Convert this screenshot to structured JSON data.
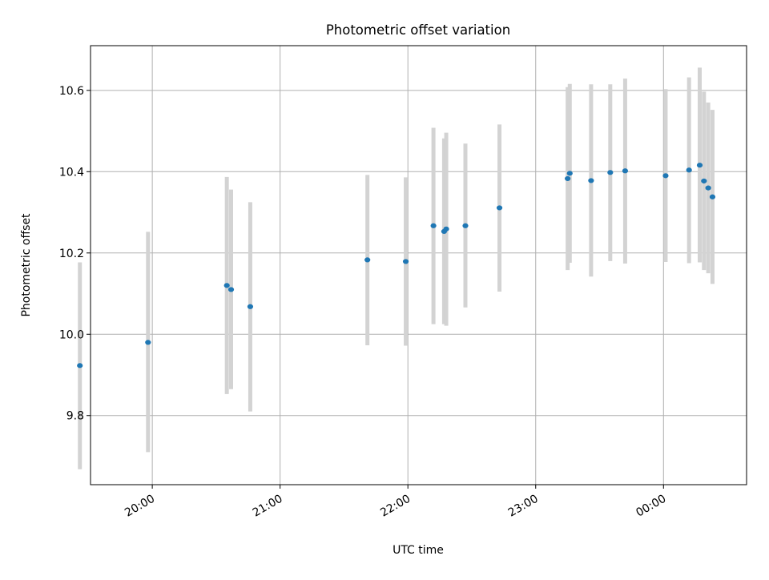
{
  "chart_data": {
    "type": "scatter",
    "title": "Photometric offset variation",
    "xlabel": "UTC time",
    "ylabel": "Photometric offset",
    "x_ticks": [
      "20:00",
      "21:00",
      "22:00",
      "23:00",
      "00:00"
    ],
    "y_ticks": [
      "9.8",
      "10.0",
      "10.2",
      "10.4",
      "10.6"
    ],
    "xlim": [
      "19:31",
      "00:39"
    ],
    "ylim": [
      9.63,
      10.71
    ],
    "grid": true,
    "colors": {
      "point": "#1f77b4",
      "error_bar": "#d3d3d3",
      "grid": "#b0b0b0"
    },
    "series": [
      {
        "points": [
          {
            "x": "19:26",
            "y": 9.923,
            "y_low": 9.668,
            "y_high": 10.177
          },
          {
            "x": "19:58",
            "y": 9.98,
            "y_low": 9.71,
            "y_high": 10.252
          },
          {
            "x": "20:35",
            "y": 10.12,
            "y_low": 9.853,
            "y_high": 10.387
          },
          {
            "x": "20:37",
            "y": 10.11,
            "y_low": 9.865,
            "y_high": 10.356
          },
          {
            "x": "20:46",
            "y": 10.068,
            "y_low": 9.81,
            "y_high": 10.325
          },
          {
            "x": "21:41",
            "y": 10.183,
            "y_low": 9.973,
            "y_high": 10.392
          },
          {
            "x": "21:59",
            "y": 10.179,
            "y_low": 9.972,
            "y_high": 10.386
          },
          {
            "x": "22:12",
            "y": 10.267,
            "y_low": 10.025,
            "y_high": 10.508
          },
          {
            "x": "22:17",
            "y": 10.253,
            "y_low": 10.025,
            "y_high": 10.482
          },
          {
            "x": "22:18",
            "y": 10.259,
            "y_low": 10.021,
            "y_high": 10.496
          },
          {
            "x": "22:27",
            "y": 10.267,
            "y_low": 10.066,
            "y_high": 10.469
          },
          {
            "x": "22:43",
            "y": 10.311,
            "y_low": 10.105,
            "y_high": 10.516
          },
          {
            "x": "23:15",
            "y": 10.383,
            "y_low": 10.158,
            "y_high": 10.608
          },
          {
            "x": "23:16",
            "y": 10.396,
            "y_low": 10.176,
            "y_high": 10.616
          },
          {
            "x": "23:26",
            "y": 10.378,
            "y_low": 10.142,
            "y_high": 10.615
          },
          {
            "x": "23:35",
            "y": 10.398,
            "y_low": 10.18,
            "y_high": 10.615
          },
          {
            "x": "23:42",
            "y": 10.402,
            "y_low": 10.174,
            "y_high": 10.629
          },
          {
            "x": "00:01",
            "y": 10.39,
            "y_low": 10.178,
            "y_high": 10.603
          },
          {
            "x": "00:12",
            "y": 10.404,
            "y_low": 10.175,
            "y_high": 10.632
          },
          {
            "x": "00:17",
            "y": 10.416,
            "y_low": 10.177,
            "y_high": 10.656
          },
          {
            "x": "00:19",
            "y": 10.377,
            "y_low": 10.158,
            "y_high": 10.597
          },
          {
            "x": "00:21",
            "y": 10.36,
            "y_low": 10.15,
            "y_high": 10.57
          },
          {
            "x": "00:23",
            "y": 10.338,
            "y_low": 10.124,
            "y_high": 10.552
          }
        ]
      }
    ]
  }
}
